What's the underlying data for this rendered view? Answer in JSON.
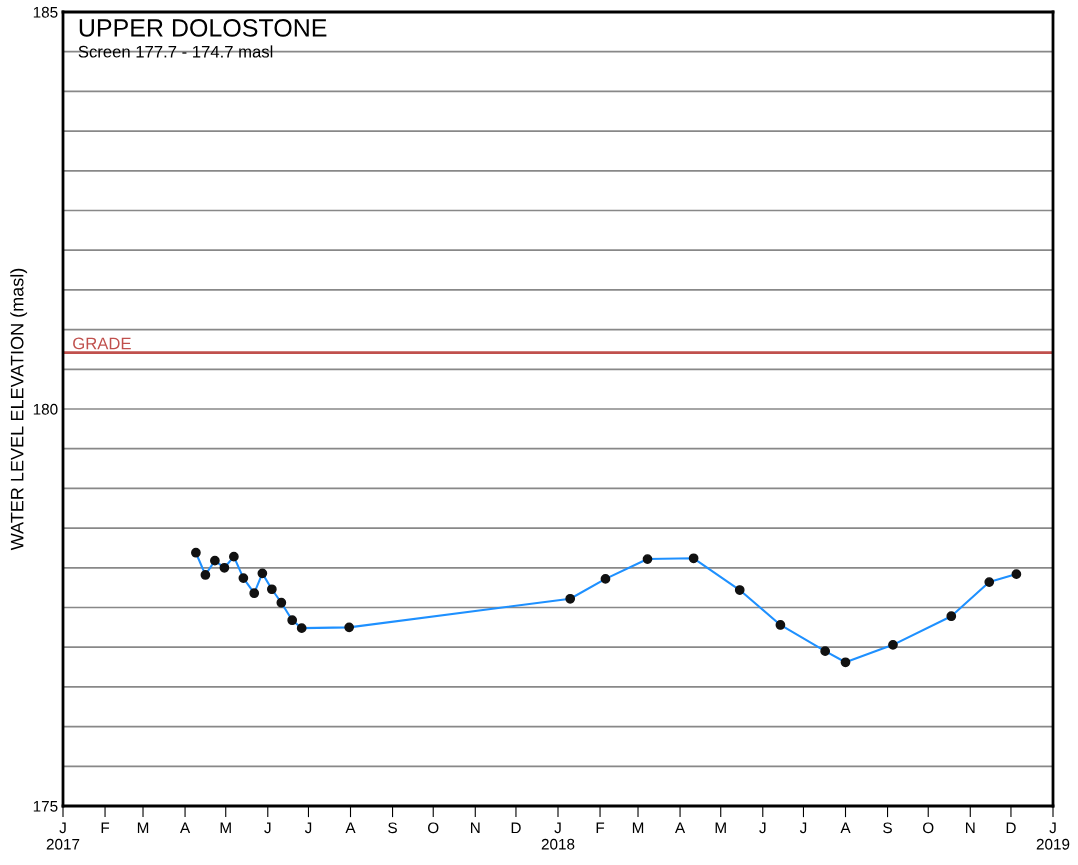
{
  "chart_data": {
    "type": "line",
    "title": "UPPER DOLOSTONE",
    "subtitle": "Screen 177.7 - 174.7 masl",
    "ylabel": "WATER LEVEL ELEVATION (masl)",
    "x": [
      "2017-04-09",
      "2017-04-16",
      "2017-04-23",
      "2017-04-30",
      "2017-05-07",
      "2017-05-14",
      "2017-05-22",
      "2017-05-28",
      "2017-06-04",
      "2017-06-11",
      "2017-06-19",
      "2017-06-26",
      "2017-07-31",
      "2018-01-10",
      "2018-02-05",
      "2018-03-08",
      "2018-04-11",
      "2018-05-15",
      "2018-06-14",
      "2018-07-17",
      "2018-08-01",
      "2018-09-05",
      "2018-10-18",
      "2018-11-15",
      "2018-12-05"
    ],
    "series": [
      {
        "color": "#1e90ff",
        "values": [
          178.19,
          177.91,
          178.09,
          178.0,
          178.14,
          177.87,
          177.68,
          177.93,
          177.73,
          177.56,
          177.34,
          177.24,
          177.25,
          177.61,
          177.86,
          178.11,
          178.12,
          177.72,
          177.28,
          176.95,
          176.81,
          177.03,
          177.39,
          177.82,
          177.92
        ]
      }
    ],
    "marker": "circle",
    "line_style": "solid",
    "grid": "y",
    "legend": false,
    "ylim": [
      175,
      185
    ],
    "yticks": [
      175,
      {
        "value": 175.5,
        "label": null
      },
      {
        "value": 176,
        "label": null
      },
      {
        "value": 176.5,
        "label": null
      },
      {
        "value": 177,
        "label": null
      },
      {
        "value": 177.5,
        "label": null
      },
      {
        "value": 178,
        "label": null
      },
      {
        "value": 178.5,
        "label": null
      },
      {
        "value": 179,
        "label": null
      },
      {
        "value": 179.5,
        "label": null
      },
      180,
      {
        "value": 180.5,
        "label": null
      },
      {
        "value": 181,
        "label": null
      },
      {
        "value": 181.5,
        "label": null
      },
      {
        "value": 182,
        "label": null
      },
      {
        "value": 182.5,
        "label": null
      },
      {
        "value": 183,
        "label": null
      },
      {
        "value": 183.5,
        "label": null
      },
      {
        "value": 184,
        "label": null
      },
      {
        "value": 184.5,
        "label": null
      },
      185
    ],
    "xlim": [
      "2017-01-01",
      "2019-01-01"
    ],
    "xticks": [
      {
        "value": "2017-01-01",
        "label": "J\n2017"
      },
      {
        "value": "2017-02-01",
        "label": "F"
      },
      {
        "value": "2017-03-01",
        "label": "M"
      },
      {
        "value": "2017-04-01",
        "label": "A"
      },
      {
        "value": "2017-05-01",
        "label": "M"
      },
      {
        "value": "2017-06-01",
        "label": "J"
      },
      {
        "value": "2017-07-01",
        "label": "J"
      },
      {
        "value": "2017-08-01",
        "label": "A"
      },
      {
        "value": "2017-09-01",
        "label": "S"
      },
      {
        "value": "2017-10-01",
        "label": "O"
      },
      {
        "value": "2017-11-01",
        "label": "N"
      },
      {
        "value": "2017-12-01",
        "label": "D"
      },
      {
        "value": "2018-01-01",
        "label": "J\n2018"
      },
      {
        "value": "2018-02-01",
        "label": "F"
      },
      {
        "value": "2018-03-01",
        "label": "M"
      },
      {
        "value": "2018-04-01",
        "label": "A"
      },
      {
        "value": "2018-05-01",
        "label": "M"
      },
      {
        "value": "2018-06-01",
        "label": "J"
      },
      {
        "value": "2018-07-01",
        "label": "J"
      },
      {
        "value": "2018-08-01",
        "label": "A"
      },
      {
        "value": "2018-09-01",
        "label": "S"
      },
      {
        "value": "2018-10-01",
        "label": "O"
      },
      {
        "value": "2018-11-01",
        "label": "N"
      },
      {
        "value": "2018-12-01",
        "label": "D"
      },
      {
        "value": "2019-01-01",
        "label": "J\n2019"
      }
    ],
    "ref_lines": [
      {
        "axis": "y",
        "value": 180.71,
        "label": "GRADE",
        "color": "#c0504d"
      }
    ]
  }
}
